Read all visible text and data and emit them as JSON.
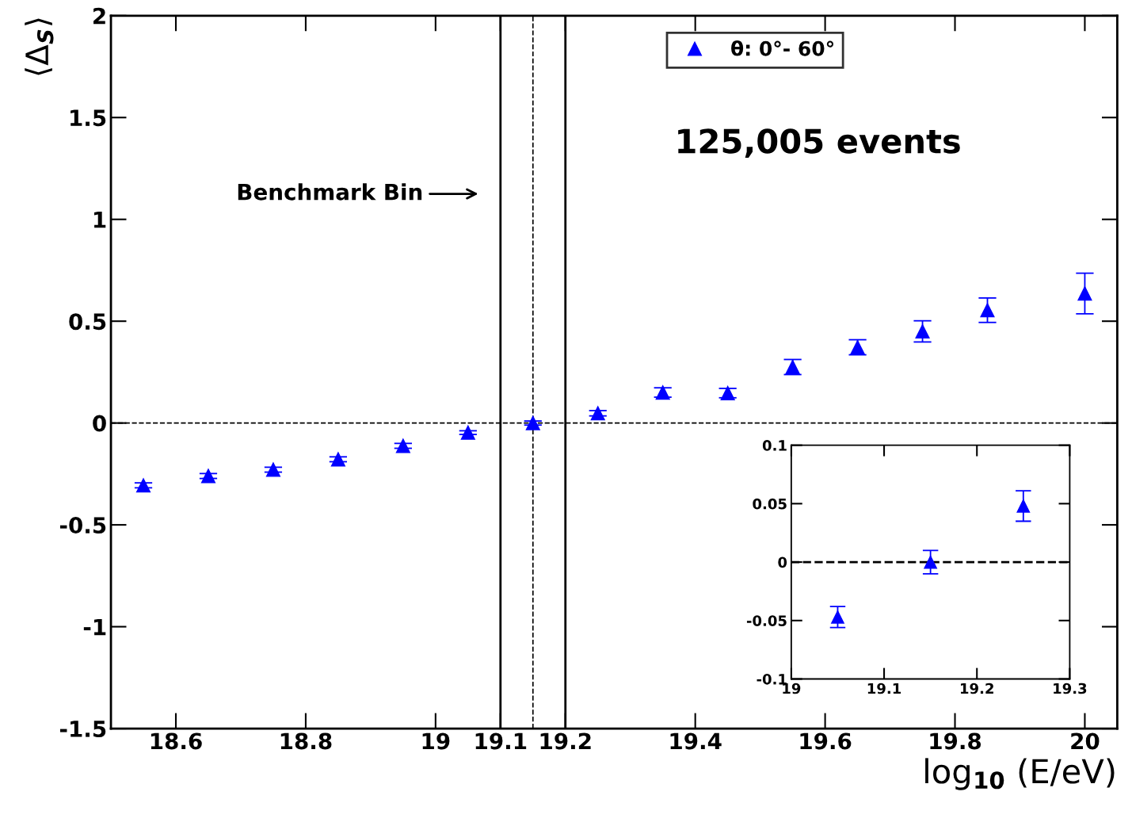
{
  "chart_data": [
    {
      "type": "scatter",
      "xlabel": "log$_{10}$ (E/eV)",
      "ylabel": "⟨Δ$_{S}$⟩",
      "x": [
        18.55,
        18.65,
        18.75,
        18.85,
        18.95,
        19.05,
        19.15,
        19.25,
        19.35,
        19.45,
        19.55,
        19.65,
        19.75,
        19.85,
        20.0
      ],
      "series": [
        {
          "name": "θ: 0°- 60°",
          "color": "#0000ff",
          "values": [
            -0.306,
            -0.26,
            -0.229,
            -0.178,
            -0.112,
            -0.047,
            0,
            0.048,
            0.15,
            0.147,
            0.275,
            0.372,
            0.45,
            0.554,
            0.636
          ],
          "errors": [
            0.012,
            0.012,
            0.012,
            0.012,
            0.012,
            0.009,
            0.01,
            0.013,
            0.023,
            0.023,
            0.037,
            0.037,
            0.052,
            0.06,
            0.1
          ]
        }
      ],
      "marker": "triangle",
      "legend": "top",
      "xlim": [
        18.5,
        20.05
      ],
      "xticks": [
        18.6,
        18.8,
        19,
        19.1,
        19.2,
        19.4,
        19.6,
        19.8,
        20
      ],
      "ylim": [
        -1.5,
        2
      ],
      "yticks": [
        {
          "value": -1.5,
          "label": "-1.5"
        },
        {
          "value": -1,
          "label": "-1"
        },
        {
          "value": -0.5,
          "label": "-0.5"
        },
        0,
        0.5,
        1,
        1.5,
        2
      ],
      "ref_lines": [
        {
          "axis": "x",
          "value": 19.1,
          "line_style": "solid"
        },
        {
          "axis": "x",
          "value": 19.2,
          "line_style": "solid"
        },
        {
          "axis": "x",
          "value": 19.15,
          "line_style": "dashed"
        },
        {
          "axis": "y",
          "value": 0,
          "line_style": "dashed"
        }
      ],
      "annotations": [
        "125,005 events",
        "Benchmark Bin"
      ]
    },
    {
      "type": "scatter",
      "x": [
        19.05,
        19.15,
        19.25
      ],
      "series": [
        {
          "color": "#0000ff",
          "values": [
            -0.047,
            0,
            0.048
          ],
          "errors": [
            0.009,
            0.01,
            0.013
          ]
        }
      ],
      "marker": "triangle",
      "xlim": [
        19,
        19.3
      ],
      "xticks": [
        19,
        19.1,
        19.2,
        19.3
      ],
      "ylim": [
        -0.1,
        0.1
      ],
      "yticks": [
        {
          "value": -0.1,
          "label": "-0.1"
        },
        {
          "value": -0.05,
          "label": "-0.05"
        },
        0,
        0.05,
        0.1
      ],
      "ref_lines": [
        {
          "axis": "y",
          "value": 0,
          "line_style": "dashed"
        }
      ]
    }
  ]
}
